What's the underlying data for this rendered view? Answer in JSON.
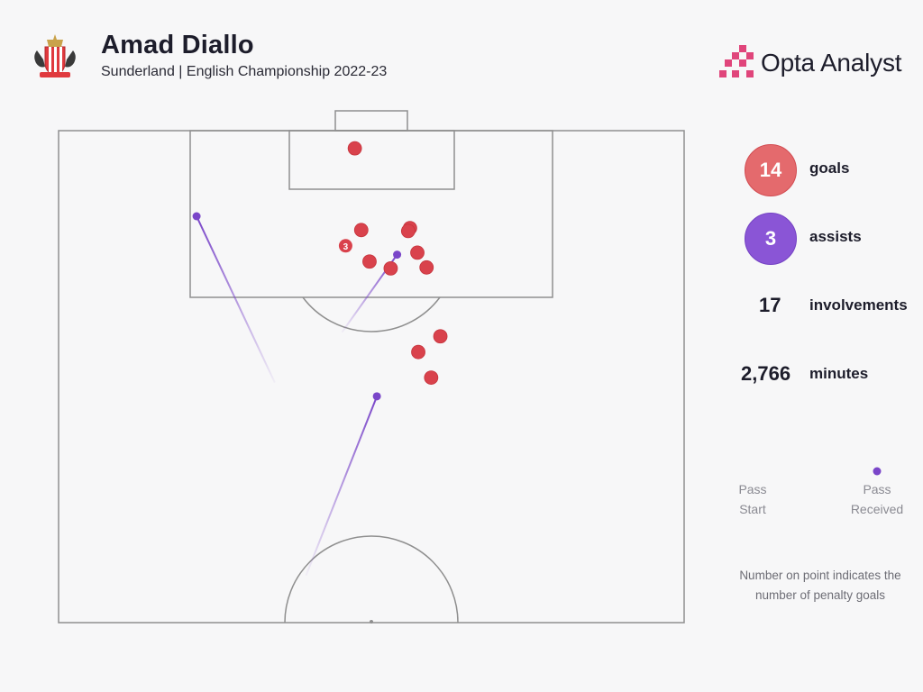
{
  "header": {
    "player_name": "Amad Diallo",
    "subtitle": "Sunderland | English Championship 2022-23",
    "brand_name": "Opta Analyst",
    "crest_icon": "sunderland-crest-icon",
    "brand_icon": "opta-pixel-logo-icon"
  },
  "stats": {
    "goals": {
      "value": "14",
      "label": "goals"
    },
    "assists": {
      "value": "3",
      "label": "assists"
    },
    "involvements": {
      "value": "17",
      "label": "involvements"
    },
    "minutes": {
      "value": "2,766",
      "label": "minutes"
    }
  },
  "legend": {
    "start_label": "Pass\nStart",
    "received_label": "Pass\nReceived",
    "note": "Number on point indicates the number of penalty goals"
  },
  "colors": {
    "goal": "#d9424c",
    "assist": "#7a46c9",
    "pitch_line": "#8f8f8f",
    "background": "#f7f7f8"
  },
  "chart_data": {
    "type": "scatter",
    "pitch": "half-pitch, attacking goal at top",
    "coordinate_units": "pitch length 0-50 (top goal line to halfway line), width 0-68",
    "goals": [
      {
        "x": 32.2,
        "y": 1.8
      },
      {
        "x": 32.9,
        "y": 10.1
      },
      {
        "x": 38.2,
        "y": 9.9
      },
      {
        "x": 38.0,
        "y": 10.2
      },
      {
        "x": 31.2,
        "y": 11.7,
        "penalty_goals": 3
      },
      {
        "x": 39.0,
        "y": 12.4
      },
      {
        "x": 33.8,
        "y": 13.3
      },
      {
        "x": 36.1,
        "y": 14.0
      },
      {
        "x": 40.0,
        "y": 13.9
      },
      {
        "x": 41.5,
        "y": 20.9
      },
      {
        "x": 39.1,
        "y": 22.5
      },
      {
        "x": 40.5,
        "y": 25.1
      }
    ],
    "assists": [
      {
        "start": [
          23.5,
          25.6
        ],
        "end": [
          15.0,
          8.7
        ]
      },
      {
        "start": [
          30.8,
          20.5
        ],
        "end": [
          36.8,
          12.6
        ]
      },
      {
        "start": [
          26.9,
          45.2
        ],
        "end": [
          34.6,
          27.0
        ]
      }
    ]
  }
}
